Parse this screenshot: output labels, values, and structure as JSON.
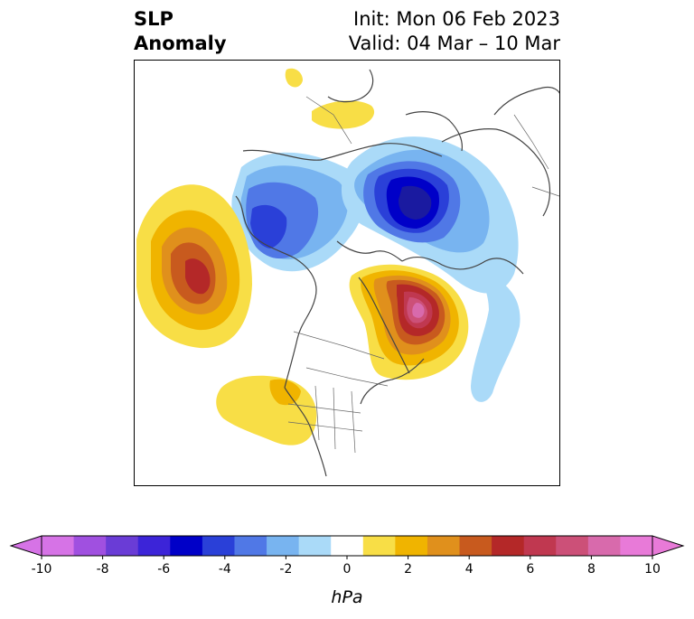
{
  "title": {
    "variable_line1": "SLP",
    "variable_line2": "Anomaly",
    "init": "Init: Mon 06 Feb 2023",
    "valid": "Valid: 04 Mar – 10 Mar"
  },
  "colorbar": {
    "unit": "hPa",
    "tick_labels": [
      "-10",
      "-8",
      "-6",
      "-4",
      "-2",
      "0",
      "2",
      "4",
      "6",
      "8",
      "10"
    ],
    "colors": [
      "#d673e6",
      "#a050e0",
      "#6a3cd6",
      "#3c24d8",
      "#0000c8",
      "#2a40d8",
      "#5078e6",
      "#78b4f0",
      "#aadaf8",
      "#ffffff",
      "#f8de46",
      "#f0b400",
      "#e0901c",
      "#c85a1e",
      "#b42828",
      "#c03850",
      "#cc5078",
      "#d86aac",
      "#e87ad8"
    ],
    "under_color": "#d673e6",
    "over_color": "#e87ad8"
  },
  "map": {
    "projection": "polar stereographic (North America / North Atlantic)",
    "anomaly_centers": [
      {
        "region": "northeast Pacific / Gulf of Alaska",
        "sign": "positive",
        "peak_hpa": 6
      },
      {
        "region": "Greenland / Baffin Bay",
        "sign": "positive",
        "peak_hpa": 8
      },
      {
        "region": "Scandinavia / Barents Sea",
        "sign": "negative",
        "peak_hpa": -6
      },
      {
        "region": "eastern Siberia / Bering Sea",
        "sign": "negative",
        "peak_hpa": -5
      },
      {
        "region": "western United States",
        "sign": "positive",
        "peak_hpa": 2
      },
      {
        "region": "northern Europe / Baltic",
        "sign": "positive",
        "peak_hpa": 2
      }
    ]
  }
}
